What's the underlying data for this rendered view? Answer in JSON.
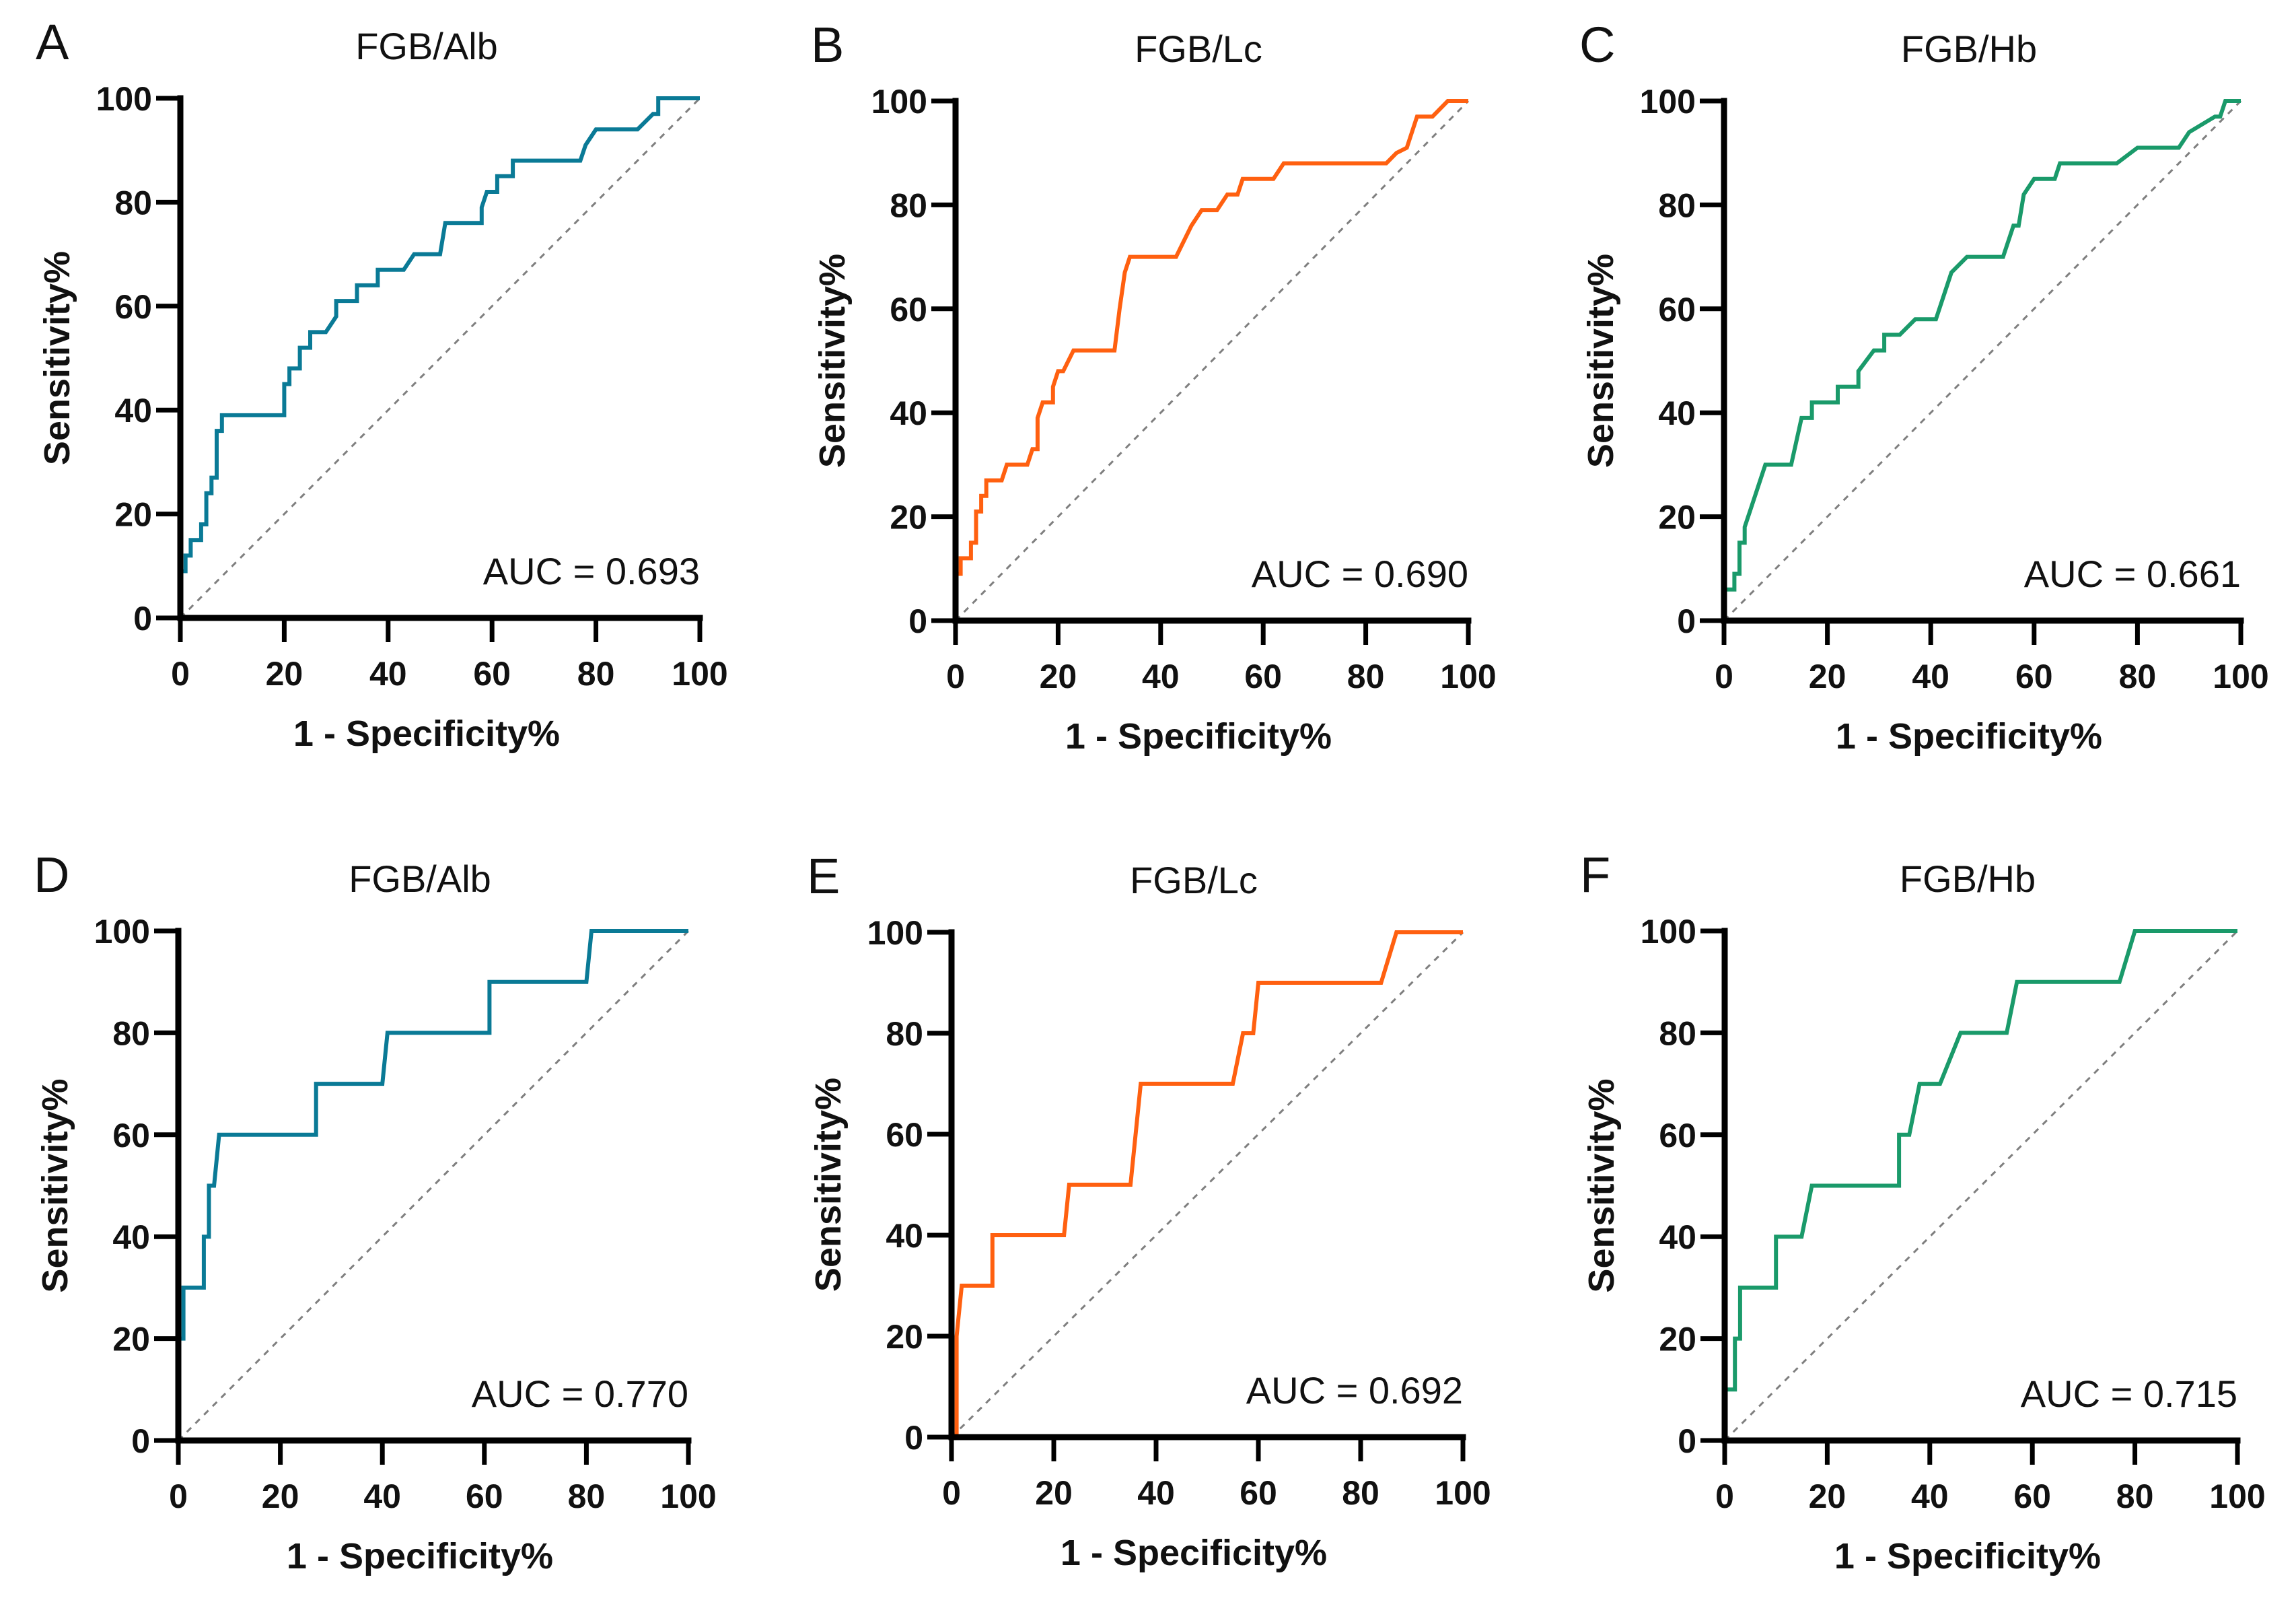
{
  "figure": {
    "panels": [
      {
        "letter": "A",
        "title": "FGB/Alb",
        "auc_label": "AUC = 0.693",
        "color": "#0a7a96"
      },
      {
        "letter": "B",
        "title": "FGB/Lc",
        "auc_label": "AUC = 0.690",
        "color": "#ff6010"
      },
      {
        "letter": "C",
        "title": "FGB/Hb",
        "auc_label": "AUC = 0.661",
        "color": "#1a9a6a"
      },
      {
        "letter": "D",
        "title": "FGB/Alb",
        "auc_label": "AUC = 0.770",
        "color": "#0a7a96"
      },
      {
        "letter": "E",
        "title": "FGB/Lc",
        "auc_label": "AUC = 0.692",
        "color": "#ff6010"
      },
      {
        "letter": "F",
        "title": "FGB/Hb",
        "auc_label": "AUC = 0.715",
        "color": "#1a9a6a"
      }
    ],
    "xlabel": "1 - Specificity%",
    "ylabel": "Sensitivity%",
    "ticks": [
      "0",
      "20",
      "40",
      "60",
      "80",
      "100"
    ]
  },
  "chart_data": [
    {
      "type": "line",
      "panel": "A",
      "title": "FGB/Alb",
      "xlabel": "1 - Specificity%",
      "ylabel": "Sensitivity%",
      "xlim": [
        0,
        100
      ],
      "ylim": [
        0,
        100
      ],
      "xticks": [
        0,
        20,
        40,
        60,
        80,
        100
      ],
      "yticks": [
        0,
        20,
        40,
        60,
        80,
        100
      ],
      "annotation": "AUC = 0.693",
      "reference_line": "diagonal dashed",
      "series": [
        {
          "name": "FGB/Alb",
          "x": [
            0,
            0,
            1,
            1,
            2,
            2,
            4,
            4,
            5,
            5,
            6,
            6,
            7,
            7,
            8,
            8,
            20,
            20,
            21,
            21,
            23,
            23,
            25,
            25,
            28,
            30,
            30,
            34,
            34,
            38,
            38,
            43,
            45,
            50,
            51,
            58,
            58,
            59,
            60,
            61,
            61,
            64,
            64,
            77,
            78,
            80,
            88,
            91,
            92,
            92,
            100
          ],
          "y": [
            0,
            9,
            9,
            12,
            12,
            15,
            15,
            18,
            18,
            24,
            24,
            27,
            27,
            36,
            36,
            39,
            39,
            45,
            45,
            48,
            48,
            52,
            52,
            55,
            55,
            58,
            61,
            61,
            64,
            64,
            67,
            67,
            70,
            70,
            76,
            76,
            79,
            82,
            82,
            82,
            85,
            85,
            88,
            88,
            91,
            94,
            94,
            97,
            97,
            100,
            100
          ]
        }
      ]
    },
    {
      "type": "line",
      "panel": "B",
      "title": "FGB/Lc",
      "xlabel": "1 - Specificity%",
      "ylabel": "Sensitivity%",
      "xlim": [
        0,
        100
      ],
      "ylim": [
        0,
        100
      ],
      "xticks": [
        0,
        20,
        40,
        60,
        80,
        100
      ],
      "yticks": [
        0,
        20,
        40,
        60,
        80,
        100
      ],
      "annotation": "AUC = 0.690",
      "reference_line": "diagonal dashed",
      "series": [
        {
          "name": "FGB/Lc",
          "x": [
            0,
            0,
            1,
            1,
            3,
            3,
            4,
            4,
            5,
            5,
            6,
            6,
            9,
            10,
            14,
            15,
            16,
            16,
            17,
            19,
            19,
            20,
            21,
            23,
            31,
            32,
            33,
            34,
            43,
            46,
            48,
            51,
            53,
            55,
            56,
            62,
            64,
            84,
            86,
            88,
            90,
            93,
            96,
            97,
            100
          ],
          "y": [
            0,
            9,
            9,
            12,
            12,
            15,
            15,
            21,
            21,
            24,
            24,
            27,
            27,
            30,
            30,
            33,
            33,
            39,
            42,
            42,
            45,
            48,
            48,
            52,
            52,
            60,
            67,
            70,
            70,
            76,
            79,
            79,
            82,
            82,
            85,
            85,
            88,
            88,
            90,
            91,
            97,
            97,
            100,
            100,
            100
          ]
        }
      ]
    },
    {
      "type": "line",
      "panel": "C",
      "title": "FGB/Hb",
      "xlabel": "1 - Specificity%",
      "ylabel": "Sensitivity%",
      "xlim": [
        0,
        100
      ],
      "ylim": [
        0,
        100
      ],
      "xticks": [
        0,
        20,
        40,
        60,
        80,
        100
      ],
      "yticks": [
        0,
        20,
        40,
        60,
        80,
        100
      ],
      "annotation": "AUC = 0.661",
      "reference_line": "diagonal dashed",
      "series": [
        {
          "name": "FGB/Hb",
          "x": [
            0,
            0,
            2,
            2,
            3,
            3,
            4,
            4,
            5,
            8,
            13,
            15,
            17,
            17,
            22,
            22,
            26,
            26,
            29,
            31,
            31,
            34,
            37,
            41,
            44,
            47,
            54,
            55,
            56,
            57,
            58,
            60,
            64,
            65,
            76,
            80,
            88,
            90,
            95,
            96,
            97,
            100
          ],
          "y": [
            0,
            6,
            6,
            9,
            9,
            15,
            15,
            18,
            21,
            30,
            30,
            39,
            39,
            42,
            42,
            45,
            45,
            48,
            52,
            52,
            55,
            55,
            58,
            58,
            67,
            70,
            70,
            73,
            76,
            76,
            82,
            85,
            85,
            88,
            88,
            91,
            91,
            94,
            97,
            97,
            100,
            100
          ]
        }
      ]
    },
    {
      "type": "line",
      "panel": "D",
      "title": "FGB/Alb",
      "xlabel": "1 - Specificity%",
      "ylabel": "Sensitivity%",
      "xlim": [
        0,
        100
      ],
      "ylim": [
        0,
        100
      ],
      "xticks": [
        0,
        20,
        40,
        60,
        80,
        100
      ],
      "yticks": [
        0,
        20,
        40,
        60,
        80,
        100
      ],
      "annotation": "AUC = 0.770",
      "reference_line": "diagonal dashed",
      "series": [
        {
          "name": "FGB/Alb",
          "x": [
            0,
            0,
            1,
            1,
            5,
            5,
            6,
            6,
            7,
            8,
            27,
            27,
            40,
            41,
            61,
            61,
            80,
            81,
            100
          ],
          "y": [
            0,
            20,
            20,
            30,
            30,
            40,
            40,
            50,
            50,
            60,
            60,
            70,
            70,
            80,
            80,
            90,
            90,
            100,
            100
          ]
        }
      ]
    },
    {
      "type": "line",
      "panel": "E",
      "title": "FGB/Lc",
      "xlabel": "1 - Specificity%",
      "ylabel": "Sensitivity%",
      "xlim": [
        0,
        100
      ],
      "ylim": [
        0,
        100
      ],
      "xticks": [
        0,
        20,
        40,
        60,
        80,
        100
      ],
      "yticks": [
        0,
        20,
        40,
        60,
        80,
        100
      ],
      "annotation": "AUC = 0.692",
      "reference_line": "diagonal dashed",
      "series": [
        {
          "name": "FGB/Lc",
          "x": [
            0,
            0,
            1,
            1,
            2,
            8,
            8,
            22,
            23,
            35,
            37,
            55,
            57,
            58,
            59,
            60,
            84,
            87,
            100
          ],
          "y": [
            0,
            0,
            0,
            20,
            30,
            30,
            40,
            40,
            50,
            50,
            70,
            70,
            80,
            80,
            80,
            90,
            90,
            100,
            100
          ]
        }
      ]
    },
    {
      "type": "line",
      "panel": "F",
      "title": "FGB/Hb",
      "xlabel": "1 - Specificity%",
      "ylabel": "Sensitivity%",
      "xlim": [
        0,
        100
      ],
      "ylim": [
        0,
        100
      ],
      "xticks": [
        0,
        20,
        40,
        60,
        80,
        100
      ],
      "yticks": [
        0,
        20,
        40,
        60,
        80,
        100
      ],
      "annotation": "AUC = 0.715",
      "reference_line": "diagonal dashed",
      "series": [
        {
          "name": "FGB/Hb",
          "x": [
            0,
            0,
            2,
            2,
            3,
            3,
            10,
            10,
            15,
            17,
            34,
            34,
            36,
            38,
            42,
            46,
            55,
            57,
            77,
            80,
            100
          ],
          "y": [
            0,
            10,
            10,
            20,
            20,
            30,
            30,
            40,
            40,
            50,
            50,
            60,
            60,
            70,
            70,
            80,
            80,
            90,
            90,
            100,
            100
          ]
        }
      ]
    }
  ]
}
